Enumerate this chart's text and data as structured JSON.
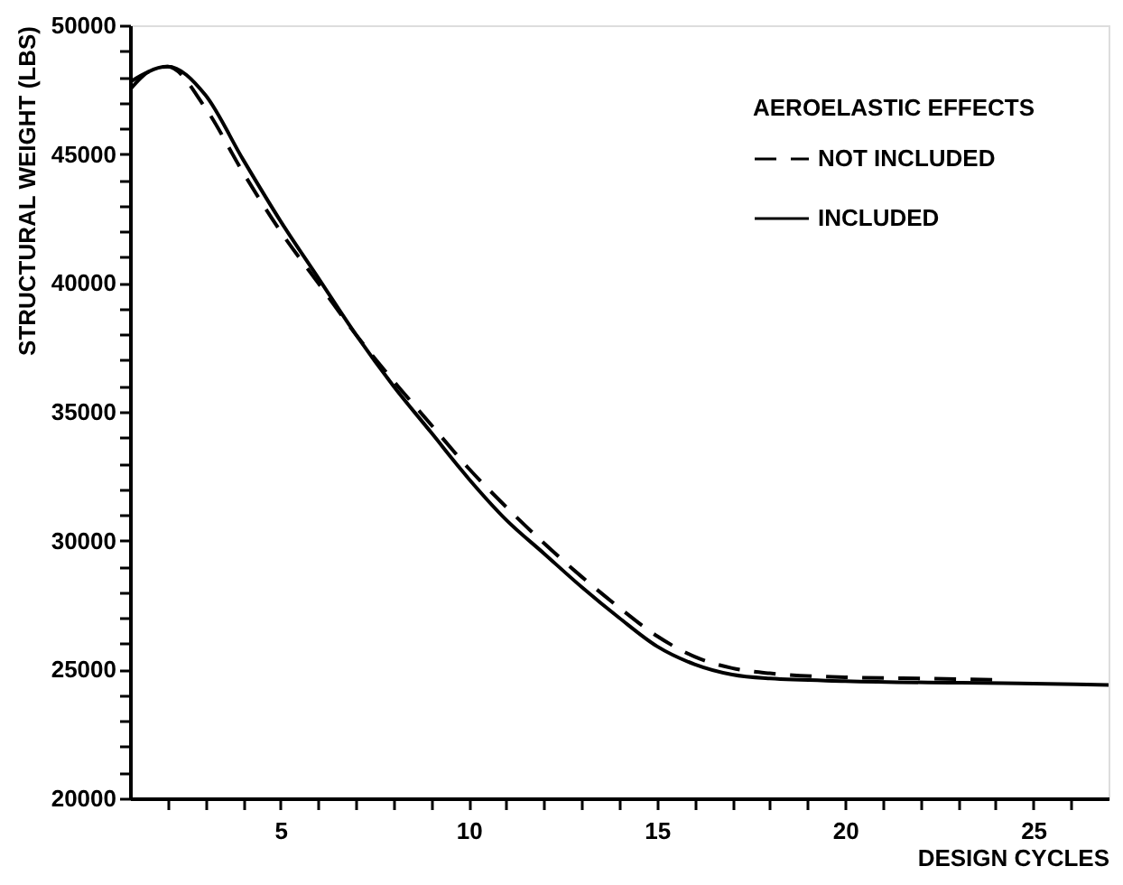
{
  "chart_data": {
    "type": "line",
    "xlabel": "DESIGN CYCLES",
    "ylabel": "STRUCTURAL WEIGHT (LBS)",
    "legend_title": "AEROELASTIC EFFECTS",
    "legend": "top right",
    "grid": false,
    "marker": "none",
    "xlim": [
      1,
      27
    ],
    "ylim": [
      20000,
      50000
    ],
    "xticks": [
      {
        "value": 2,
        "label": null
      },
      {
        "value": 3,
        "label": null
      },
      {
        "value": 4,
        "label": null
      },
      5,
      {
        "value": 6,
        "label": null
      },
      {
        "value": 7,
        "label": null
      },
      {
        "value": 8,
        "label": null
      },
      {
        "value": 9,
        "label": null
      },
      10,
      {
        "value": 11,
        "label": null
      },
      {
        "value": 12,
        "label": null
      },
      {
        "value": 13,
        "label": null
      },
      {
        "value": 14,
        "label": null
      },
      15,
      {
        "value": 16,
        "label": null
      },
      {
        "value": 17,
        "label": null
      },
      {
        "value": 18,
        "label": null
      },
      {
        "value": 19,
        "label": null
      },
      20,
      {
        "value": 21,
        "label": null
      },
      {
        "value": 22,
        "label": null
      },
      {
        "value": 23,
        "label": null
      },
      {
        "value": 24,
        "label": null
      },
      25,
      {
        "value": 26,
        "label": null
      }
    ],
    "yticks": [
      20000,
      {
        "value": 21000,
        "label": null
      },
      {
        "value": 22000,
        "label": null
      },
      {
        "value": 23000,
        "label": null
      },
      {
        "value": 24000,
        "label": null
      },
      25000,
      {
        "value": 26000,
        "label": null
      },
      {
        "value": 27000,
        "label": null
      },
      {
        "value": 28000,
        "label": null
      },
      {
        "value": 29000,
        "label": null
      },
      30000,
      {
        "value": 31000,
        "label": null
      },
      {
        "value": 32000,
        "label": null
      },
      {
        "value": 33000,
        "label": null
      },
      {
        "value": 34000,
        "label": null
      },
      35000,
      {
        "value": 36000,
        "label": null
      },
      {
        "value": 37000,
        "label": null
      },
      {
        "value": 38000,
        "label": null
      },
      {
        "value": 39000,
        "label": null
      },
      40000,
      {
        "value": 41000,
        "label": null
      },
      {
        "value": 42000,
        "label": null
      },
      {
        "value": 43000,
        "label": null
      },
      {
        "value": 44000,
        "label": null
      },
      45000,
      {
        "value": 46000,
        "label": null
      },
      {
        "value": 47000,
        "label": null
      },
      {
        "value": 48000,
        "label": null
      },
      {
        "value": 49000,
        "label": null
      },
      50000
    ],
    "series": [
      {
        "name": "NOT INCLUDED",
        "color": "#000000",
        "line_style": "dashed",
        "x": [
          1,
          1.5,
          2,
          3,
          4,
          5,
          6,
          7,
          8,
          9,
          10,
          11,
          12,
          13,
          14,
          15,
          16,
          17,
          18,
          20,
          22,
          24
        ],
        "values": [
          47800,
          48200,
          48400,
          46800,
          44300,
          42000,
          40000,
          38000,
          36200,
          34500,
          32800,
          31300,
          29900,
          28600,
          27400,
          26300,
          25500,
          25050,
          24850,
          24700,
          24650,
          24600
        ]
      },
      {
        "name": "INCLUDED",
        "color": "#000000",
        "line_style": "solid",
        "x": [
          1,
          1.5,
          2,
          3,
          4,
          5,
          6,
          7,
          8,
          9,
          10,
          11,
          12,
          13,
          14,
          15,
          16,
          17,
          18,
          20,
          25,
          27
        ],
        "values": [
          47500,
          48200,
          48400,
          47300,
          44800,
          42400,
          40200,
          38000,
          36000,
          34200,
          32400,
          30800,
          29500,
          28200,
          27000,
          25900,
          25200,
          24800,
          24650,
          24550,
          24450,
          24400
        ]
      }
    ]
  }
}
